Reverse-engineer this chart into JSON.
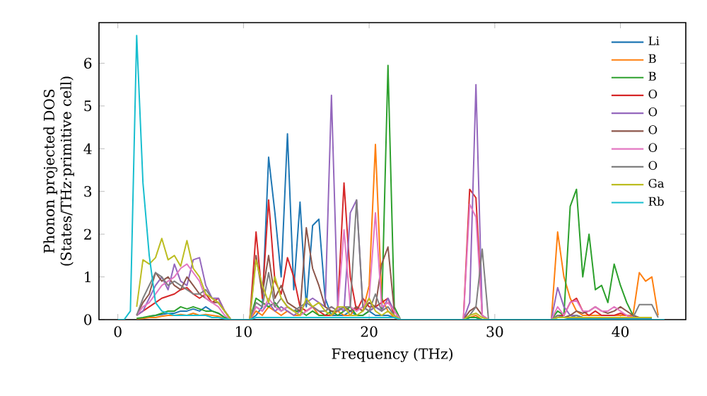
{
  "chart_data": {
    "type": "line",
    "xlabel": "Frequency (THz)",
    "ylabel": "Phonon projected DOS\n(States/THz·primitive cell)",
    "x": [
      0,
      0.5,
      1,
      1.5,
      2,
      2.5,
      3,
      3.5,
      4,
      4.5,
      5,
      5.5,
      6,
      6.5,
      7,
      7.5,
      8,
      8.5,
      9,
      9.5,
      10,
      10.5,
      11,
      11.5,
      12,
      12.5,
      13,
      13.5,
      14,
      14.5,
      15,
      15.5,
      16,
      16.5,
      17,
      17.5,
      18,
      18.5,
      19,
      19.5,
      20,
      20.5,
      21,
      21.5,
      22,
      22.5,
      23,
      23.5,
      24,
      24.5,
      25,
      25.5,
      26,
      26.5,
      27,
      27.5,
      28,
      28.5,
      29,
      29.5,
      30,
      30.5,
      31,
      31.5,
      32,
      32.5,
      33,
      33.5,
      34,
      34.5,
      35,
      35.5,
      36,
      36.5,
      37,
      37.5,
      38,
      38.5,
      39,
      39.5,
      40,
      40.5,
      41,
      41.5,
      42,
      42.5,
      43,
      43.5
    ],
    "xlim": [
      -1.5,
      45.2
    ],
    "ylim": [
      0,
      6.95
    ],
    "xticks": [
      0,
      10,
      20,
      30,
      40
    ],
    "yticks": [
      0,
      1,
      2,
      3,
      4,
      5,
      6
    ],
    "legend": "top right",
    "series": [
      {
        "name": "Li",
        "color": "#1f77b4",
        "values": [
          null,
          null,
          null,
          null,
          null,
          0.08,
          0.1,
          0.12,
          0.15,
          0.15,
          0.2,
          0.2,
          0.25,
          0.2,
          0.3,
          0.2,
          0.15,
          0.05,
          0,
          0,
          0,
          0,
          0.1,
          0.3,
          3.8,
          2.5,
          1.0,
          4.35,
          0.7,
          2.75,
          0.3,
          2.2,
          2.35,
          0.5,
          0.1,
          0.1,
          0.1,
          0.2,
          0.1,
          0.1,
          0.2,
          0.1,
          0.1,
          0.1,
          0.05,
          0,
          0,
          0,
          0,
          0,
          0,
          0,
          0,
          0,
          0,
          0,
          0.05,
          0.05,
          0,
          0,
          0,
          0,
          0,
          0,
          0,
          0,
          0,
          0,
          0,
          0,
          0.05,
          0.05,
          0.02,
          0.02,
          0.02,
          0.02,
          0.02,
          0.02,
          0.02,
          0.02,
          0.02,
          0.02,
          0.02,
          0.02,
          0.02,
          0.02,
          null,
          null
        ]
      },
      {
        "name": "B",
        "color": "#ff7f0e",
        "values": [
          null,
          null,
          null,
          0.02,
          0.03,
          0.05,
          0.05,
          0.08,
          0.1,
          0.1,
          0.12,
          0.1,
          0.15,
          0.1,
          0.12,
          0.1,
          0.08,
          0.03,
          0,
          0,
          0,
          0,
          0.2,
          0.1,
          0.3,
          0.2,
          0.1,
          0.2,
          0.1,
          0.1,
          0.2,
          0.3,
          0.1,
          0.1,
          0.1,
          0.2,
          0.1,
          0.1,
          0.3,
          0.2,
          0.8,
          4.1,
          0.5,
          0.2,
          0.05,
          0,
          0,
          0,
          0,
          0,
          0,
          0,
          0,
          0,
          0,
          0,
          0.05,
          0.1,
          0,
          0,
          0,
          0,
          0,
          0,
          0,
          0,
          0,
          0,
          0,
          0,
          2.05,
          1.0,
          0.5,
          0.2,
          0.1,
          0.1,
          0.1,
          0.1,
          0.1,
          0.1,
          0.1,
          0.1,
          0.1,
          1.1,
          0.9,
          1.0,
          0.1,
          null
        ]
      },
      {
        "name": "B",
        "color": "#2ca02c",
        "values": [
          null,
          null,
          null,
          0.03,
          0.05,
          0.08,
          0.1,
          0.15,
          0.2,
          0.2,
          0.3,
          0.25,
          0.3,
          0.25,
          0.2,
          0.2,
          0.15,
          0.05,
          0,
          0,
          0,
          0,
          0.5,
          0.4,
          0.3,
          0.4,
          0.2,
          0.3,
          0.2,
          0.2,
          0.1,
          0.2,
          0.1,
          0.1,
          0.2,
          0.1,
          0.2,
          0.3,
          0.1,
          0.1,
          0.2,
          0.3,
          0.2,
          5.95,
          0.3,
          0,
          0,
          0,
          0,
          0,
          0,
          0,
          0,
          0,
          0,
          0,
          0.05,
          0.05,
          0,
          0,
          0,
          0,
          0,
          0,
          0,
          0,
          0,
          0,
          0,
          0,
          0.2,
          0.1,
          2.65,
          3.05,
          1.0,
          2.0,
          0.7,
          0.8,
          0.4,
          1.3,
          0.8,
          0.4,
          0.1,
          null,
          null,
          null,
          null,
          null
        ]
      },
      {
        "name": "O",
        "color": "#d62728",
        "values": [
          null,
          null,
          null,
          0.1,
          0.2,
          0.3,
          0.4,
          0.5,
          0.55,
          0.6,
          0.7,
          0.75,
          0.6,
          0.5,
          0.6,
          0.4,
          0.5,
          0.2,
          0,
          0,
          0,
          0,
          2.05,
          0.5,
          2.8,
          0.9,
          0.6,
          1.45,
          1.0,
          0.3,
          0.2,
          0.3,
          0.2,
          0.1,
          0.1,
          0.3,
          3.2,
          1.0,
          0.2,
          0.5,
          0.3,
          0.3,
          0.4,
          0.5,
          0.1,
          0,
          0,
          0,
          0,
          0,
          0,
          0,
          0,
          0,
          0,
          0,
          3.05,
          2.85,
          0.1,
          0,
          0,
          0,
          0,
          0,
          0,
          0,
          0,
          0,
          0,
          0,
          0.1,
          0.1,
          0.4,
          0.5,
          0.2,
          0.1,
          0.2,
          0.1,
          0.1,
          0.1,
          0.15,
          0.1,
          0.05,
          null,
          null,
          null,
          null,
          null
        ]
      },
      {
        "name": "O",
        "color": "#9467bd",
        "values": [
          null,
          null,
          null,
          0.1,
          0.2,
          0.5,
          0.8,
          1.0,
          0.7,
          1.3,
          0.9,
          0.8,
          1.4,
          1.45,
          0.8,
          0.5,
          0.5,
          0.2,
          0,
          0,
          0,
          0,
          0.3,
          0.2,
          0.4,
          0.2,
          0.3,
          0.2,
          0.1,
          0.2,
          0.4,
          0.5,
          0.4,
          0.3,
          5.25,
          0.3,
          0.2,
          2.5,
          2.8,
          0.3,
          0.2,
          0.3,
          0.2,
          0.5,
          0.2,
          0,
          0,
          0,
          0,
          0,
          0,
          0,
          0,
          0,
          0,
          0,
          0.4,
          5.5,
          0.1,
          0,
          0,
          0,
          0,
          0,
          0,
          0,
          0,
          0,
          0,
          0,
          0.75,
          0.3,
          0.1,
          0.1,
          0.05,
          0.05,
          null,
          null,
          null,
          null,
          null,
          null,
          null,
          null,
          null,
          null,
          null,
          null
        ]
      },
      {
        "name": "O",
        "color": "#8c564b",
        "values": [
          null,
          null,
          null,
          0.1,
          0.4,
          0.6,
          1.1,
          0.9,
          1.0,
          0.8,
          0.7,
          1.0,
          0.8,
          0.6,
          0.5,
          0.4,
          0.4,
          0.2,
          0,
          0,
          0,
          0,
          1.5,
          0.6,
          1.5,
          0.5,
          0.8,
          0.4,
          0.3,
          0.2,
          2.15,
          1.2,
          0.8,
          0.3,
          0.2,
          0.2,
          0.3,
          0.2,
          0.3,
          0.2,
          0.4,
          0.3,
          1.3,
          1.7,
          0.2,
          0,
          0,
          0,
          0,
          0,
          0,
          0,
          0,
          0,
          0,
          0,
          0.2,
          0.3,
          0.1,
          0,
          0,
          0,
          0,
          0,
          0,
          0,
          0,
          0,
          0,
          0,
          0.1,
          0.05,
          0.1,
          0.2,
          0.15,
          0.2,
          0.3,
          0.2,
          0.15,
          0.2,
          0.3,
          0.2,
          0.1,
          0.05,
          null,
          null,
          null,
          null
        ]
      },
      {
        "name": "O",
        "color": "#e377c2",
        "values": [
          null,
          null,
          null,
          0.1,
          0.3,
          0.4,
          0.6,
          0.8,
          0.9,
          1.0,
          1.2,
          1.3,
          1.1,
          0.9,
          0.5,
          0.4,
          0.3,
          0.1,
          0,
          0,
          0,
          0,
          0.3,
          0.2,
          0.5,
          0.3,
          0.2,
          0.3,
          0.2,
          0.1,
          0.2,
          0.3,
          0.2,
          0.2,
          0.3,
          0.2,
          2.1,
          0.3,
          0.2,
          0.3,
          0.5,
          2.5,
          0.3,
          0.4,
          0.2,
          0,
          0,
          0,
          0,
          0,
          0,
          0,
          0,
          0,
          0,
          0,
          2.7,
          2.4,
          0.1,
          0,
          0,
          0,
          0,
          0,
          0,
          0,
          0,
          0,
          0,
          0,
          0.3,
          0.1,
          0.4,
          0.45,
          0.2,
          0.2,
          0.3,
          0.2,
          0.2,
          0.3,
          0.2,
          0.1,
          0.05,
          null,
          null,
          null,
          null,
          null
        ]
      },
      {
        "name": "O",
        "color": "#7f7f7f",
        "values": [
          null,
          null,
          null,
          0.1,
          0.5,
          0.8,
          1.1,
          1.0,
          0.8,
          0.9,
          0.8,
          0.7,
          0.6,
          0.6,
          0.7,
          0.5,
          0.4,
          0.2,
          0,
          0,
          0,
          0,
          0.4,
          0.3,
          1.1,
          0.3,
          0.5,
          0.3,
          0.2,
          0.3,
          0.4,
          0.3,
          0.2,
          0.2,
          0.3,
          0.2,
          0.3,
          0.3,
          2.8,
          0.3,
          0.2,
          0.6,
          0.2,
          0.3,
          0.1,
          0,
          0,
          0,
          0,
          0,
          0,
          0,
          0,
          0,
          0,
          0,
          0.1,
          0.3,
          1.65,
          0,
          0,
          0,
          0,
          0,
          0,
          0,
          0,
          0,
          0,
          0,
          0.1,
          0.05,
          0.05,
          0.1,
          0.05,
          0.05,
          0.05,
          0.05,
          0.05,
          0.05,
          0.05,
          0.05,
          0.05,
          0.35,
          0.35,
          0.35,
          0.05,
          null
        ]
      },
      {
        "name": "Ga",
        "color": "#bcbd22",
        "values": [
          null,
          null,
          null,
          0.3,
          1.4,
          1.3,
          1.45,
          1.9,
          1.4,
          1.5,
          1.25,
          1.85,
          1.2,
          1.0,
          0.6,
          0.5,
          0.4,
          0.2,
          0,
          0,
          0,
          0,
          1.4,
          0.8,
          0.4,
          1.0,
          0.5,
          0.3,
          0.2,
          0.1,
          0.5,
          0.3,
          0.4,
          0.2,
          0.1,
          0.3,
          0.3,
          0.1,
          0.1,
          0.2,
          0.5,
          0.2,
          0.1,
          0.2,
          0.1,
          0,
          0,
          0,
          0,
          0,
          0,
          0,
          0,
          0,
          0,
          0,
          0.1,
          0.15,
          0.05,
          0,
          0,
          0,
          0,
          0,
          0,
          0,
          0,
          0,
          0,
          0,
          0.05,
          0.05,
          0.05,
          0.05,
          0.05,
          0.05,
          0.05,
          0.05,
          0.05,
          0.05,
          0.05,
          0.05,
          0.05,
          0.05,
          0.05,
          0.05,
          null,
          null
        ]
      },
      {
        "name": "Rb",
        "color": "#17becf",
        "values": [
          0,
          0,
          0.2,
          6.65,
          3.2,
          1.5,
          0.4,
          0.2,
          0.15,
          0.1,
          0.1,
          0.1,
          0.1,
          0.1,
          0.1,
          0.05,
          0.05,
          0.02,
          0,
          0,
          0,
          0,
          0.05,
          0.05,
          0.05,
          0.05,
          0.05,
          0.05,
          0.05,
          0.05,
          0.05,
          0.05,
          0.05,
          0.05,
          0.05,
          0.05,
          0.05,
          0.05,
          0.05,
          0.05,
          0.05,
          0.05,
          0.05,
          0.05,
          0.05,
          0,
          0,
          0,
          0,
          0,
          0,
          0,
          0,
          0,
          0,
          0,
          0,
          0,
          0,
          0,
          0,
          0,
          0,
          0,
          0,
          0,
          0,
          0,
          0,
          0,
          0,
          0,
          0,
          0,
          0,
          0,
          0,
          0,
          0,
          0,
          0,
          0,
          0,
          0,
          0,
          0,
          0,
          0
        ]
      }
    ]
  }
}
